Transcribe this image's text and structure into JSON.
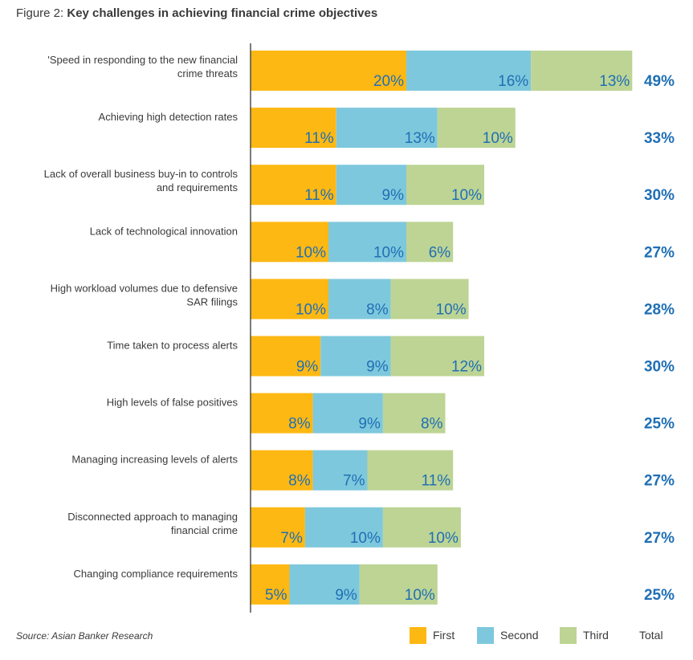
{
  "figure": {
    "prefix": "Figure 2: ",
    "title_bold": "Key challenges in achieving financial crime objectives"
  },
  "source": "Source: Asian Banker Research",
  "legend": {
    "first": "First",
    "second": "Second",
    "third": "Third",
    "total": "Total"
  },
  "colors": {
    "first": "#FDB813",
    "second": "#7EC8DD",
    "third": "#BDD494",
    "label": "#1F6FB5",
    "text": "#3a3a3a",
    "axis": "#333333"
  },
  "chart_data": {
    "type": "bar",
    "orientation": "horizontal",
    "stacked": true,
    "title": "Key challenges in achieving financial crime objectives",
    "categories": [
      "'Speed in responding to the new financial crime threats",
      "Achieving high detection rates",
      "Lack of overall business buy-in to controls and requirements",
      "Lack of technological innovation",
      "High workload volumes due to defensive SAR filings",
      "Time taken to process alerts",
      "High levels of false positives",
      "Managing increasing levels of alerts",
      "Disconnected approach to managing financial crime",
      "Changing compliance requirements"
    ],
    "category_lines": [
      [
        "'Speed in responding to the new financial",
        "crime threats"
      ],
      [
        "Achieving high detection rates"
      ],
      [
        "Lack of overall business buy-in to controls",
        "and requirements"
      ],
      [
        "Lack of technological innovation"
      ],
      [
        "High workload volumes due to defensive",
        "SAR filings"
      ],
      [
        "Time taken to process alerts"
      ],
      [
        "High levels of false positives"
      ],
      [
        "Managing increasing levels of alerts"
      ],
      [
        "Disconnected approach to managing",
        "financial crime"
      ],
      [
        "Changing compliance requirements"
      ]
    ],
    "series": [
      {
        "name": "First",
        "values": [
          20,
          11,
          11,
          10,
          10,
          9,
          8,
          8,
          7,
          5
        ]
      },
      {
        "name": "Second",
        "values": [
          16,
          13,
          9,
          10,
          8,
          9,
          9,
          7,
          10,
          9
        ]
      },
      {
        "name": "Third",
        "values": [
          13,
          10,
          10,
          6,
          10,
          12,
          8,
          11,
          10,
          10
        ]
      }
    ],
    "totals": [
      49,
      33,
      30,
      27,
      28,
      30,
      25,
      27,
      27,
      25
    ],
    "unit": "%",
    "legend_position": "bottom-right",
    "grid": false
  }
}
